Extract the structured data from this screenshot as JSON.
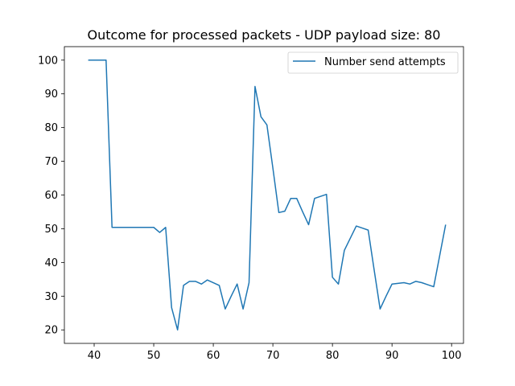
{
  "chart_data": {
    "type": "line",
    "title": "Outcome for processed packets - UDP payload size: 80",
    "xlabel": "",
    "ylabel": "",
    "xlim": [
      35.0,
      102.0
    ],
    "ylim": [
      16.0,
      104.0
    ],
    "xticks": [
      40,
      50,
      60,
      70,
      80,
      90,
      100
    ],
    "yticks": [
      20,
      30,
      40,
      50,
      60,
      70,
      80,
      90,
      100
    ],
    "grid": false,
    "legend_position": "top-right",
    "series": [
      {
        "name": "Number send attempts",
        "color": "#1f77b4",
        "x": [
          39,
          40,
          41,
          42,
          43,
          44,
          45,
          46,
          47,
          48,
          49,
          50,
          51,
          52,
          53,
          54,
          55,
          56,
          57,
          58,
          59,
          60,
          61,
          62,
          63,
          64,
          65,
          66,
          67,
          68,
          69,
          70,
          71,
          72,
          73,
          74,
          75,
          76,
          77,
          78,
          79,
          80,
          81,
          82,
          83,
          84,
          85,
          86,
          87,
          88,
          89,
          90,
          91,
          92,
          93,
          94,
          95,
          96,
          97,
          98,
          99
        ],
        "y": [
          100,
          100,
          100,
          100,
          50.4,
          50.4,
          50.4,
          50.4,
          50.4,
          50.4,
          50.4,
          50.4,
          48.9,
          50.4,
          26.6,
          20,
          33.2,
          34.4,
          34.4,
          33.6,
          34.8,
          34.0,
          33.2,
          26.2,
          30.0,
          33.6,
          26.2,
          34.0,
          92.2,
          83.2,
          80.8,
          68.0,
          54.8,
          55.2,
          59.0,
          59.0,
          55.0,
          51.2,
          59.0,
          59.6,
          60.2,
          35.6,
          33.6,
          43.6,
          47.2,
          50.8,
          50.2,
          49.6,
          37.8,
          26.2,
          30.0,
          33.6,
          33.8,
          34.0,
          33.6,
          34.4,
          34.0,
          33.4,
          32.8,
          42.0,
          51.2
        ]
      }
    ]
  }
}
